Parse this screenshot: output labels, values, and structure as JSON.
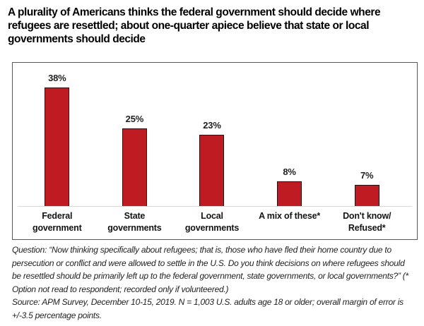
{
  "title": "A plurality of Americans thinks the federal government should decide where refugees are resettled; about one-quarter apiece believe that state or local governments should decide",
  "chart_data": {
    "type": "bar",
    "categories": [
      "Federal\ngovernment",
      "State\ngovernments",
      "Local\ngovernments",
      "A mix of these*",
      "Don't know/\nRefused*"
    ],
    "values": [
      38,
      25,
      23,
      8,
      7
    ],
    "value_labels": [
      "38%",
      "25%",
      "23%",
      "8%",
      "7%"
    ],
    "title": "",
    "xlabel": "",
    "ylabel": "",
    "ylim": [
      0,
      42
    ],
    "grid": false,
    "legend_position": "none",
    "colors": {
      "bar_fill": "#be1b22",
      "bar_border": "#330a0d",
      "axis_line": "#d9d9d9",
      "frame_border": "#58585a",
      "label_text": "#1f1f1f"
    }
  },
  "footnotes": {
    "question": "Question: “Now thinking specifically about refugees; that is, those who have fled their home country due to persecution or conflict and were allowed to settle in the U.S. Do you think decisions on where refugees should be resettled should be primarily left up to the federal government, state governments, or local governments?” (* Option not read to respondent; recorded only if volunteered.)",
    "source": "Source: APM Survey, December 10-15, 2019. N = 1,003 U.S. adults age 18 or older; overall margin of error is +/-3.5 percentage points."
  }
}
